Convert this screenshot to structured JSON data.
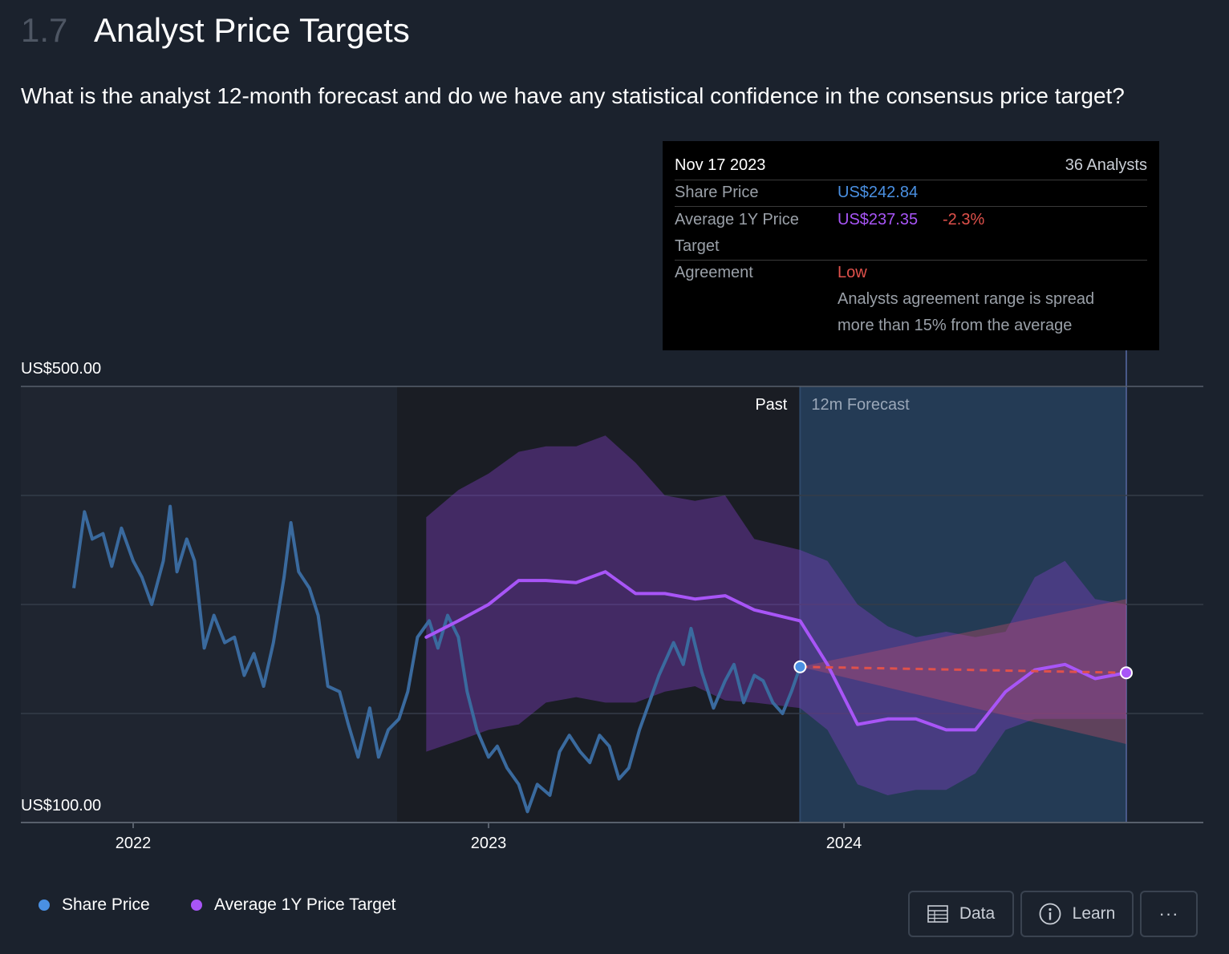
{
  "header": {
    "number": "1.7",
    "title": "Analyst Price Targets"
  },
  "subtitle": "What is the analyst 12-month forecast and do we have any statistical confidence in the consensus price target?",
  "tooltip": {
    "date": "Nov 17 2023",
    "analysts": "36 Analysts",
    "share_price_label": "Share Price",
    "share_price_value": "US$242.84",
    "target_label_line1": "Average 1Y Price",
    "target_label_line2": "Target",
    "target_value": "US$237.35",
    "target_change": "-2.3%",
    "agreement_label": "Agreement",
    "agreement_value": "Low",
    "agreement_desc_line1": "Analysts agreement range is spread",
    "agreement_desc_line2": "more than 15% from the average"
  },
  "legend": [
    {
      "label": "Share Price",
      "color": "#4a90e2"
    },
    {
      "label": "Average 1Y Price Target",
      "color": "#a855f7"
    }
  ],
  "buttons": {
    "data": "Data",
    "learn": "Learn",
    "more": "···"
  },
  "colors": {
    "share_price": "#3a6a9e",
    "target": "#a855f7",
    "forecast_bg": "#243b55",
    "negative": "#e0514b"
  },
  "chart_data": {
    "type": "line",
    "y_axis": {
      "labels": [
        "US$500.00",
        "US$100.00"
      ],
      "ylim": [
        100,
        500
      ],
      "gridlines": [
        500,
        400,
        300,
        200,
        100
      ]
    },
    "x_axis": {
      "labels": [
        "2022",
        "2023",
        "2024"
      ]
    },
    "region_labels": {
      "past": "Past",
      "forecast": "12m Forecast"
    },
    "series": [
      {
        "name": "Share Price",
        "points": [
          [
            "2021-11-01",
            315
          ],
          [
            "2021-11-12",
            385
          ],
          [
            "2021-11-20",
            360
          ],
          [
            "2021-12-01",
            365
          ],
          [
            "2021-12-10",
            335
          ],
          [
            "2021-12-20",
            370
          ],
          [
            "2022-01-01",
            340
          ],
          [
            "2022-01-10",
            325
          ],
          [
            "2022-01-20",
            300
          ],
          [
            "2022-02-01",
            340
          ],
          [
            "2022-02-08",
            390
          ],
          [
            "2022-02-15",
            330
          ],
          [
            "2022-02-25",
            360
          ],
          [
            "2022-03-05",
            340
          ],
          [
            "2022-03-15",
            260
          ],
          [
            "2022-03-25",
            290
          ],
          [
            "2022-04-05",
            265
          ],
          [
            "2022-04-15",
            270
          ],
          [
            "2022-04-25",
            235
          ],
          [
            "2022-05-05",
            255
          ],
          [
            "2022-05-15",
            225
          ],
          [
            "2022-05-25",
            265
          ],
          [
            "2022-06-05",
            325
          ],
          [
            "2022-06-12",
            375
          ],
          [
            "2022-06-20",
            330
          ],
          [
            "2022-07-01",
            315
          ],
          [
            "2022-07-10",
            290
          ],
          [
            "2022-07-20",
            225
          ],
          [
            "2022-08-01",
            220
          ],
          [
            "2022-08-10",
            190
          ],
          [
            "2022-08-20",
            160
          ],
          [
            "2022-09-01",
            205
          ],
          [
            "2022-09-10",
            160
          ],
          [
            "2022-09-20",
            185
          ],
          [
            "2022-10-01",
            195
          ],
          [
            "2022-10-10",
            220
          ],
          [
            "2022-10-20",
            270
          ],
          [
            "2022-11-01",
            285
          ],
          [
            "2022-11-10",
            260
          ],
          [
            "2022-11-20",
            290
          ],
          [
            "2022-12-01",
            270
          ],
          [
            "2022-12-10",
            220
          ],
          [
            "2022-12-20",
            185
          ],
          [
            "2023-01-01",
            160
          ],
          [
            "2023-01-10",
            170
          ],
          [
            "2023-01-20",
            150
          ],
          [
            "2023-02-01",
            135
          ],
          [
            "2023-02-10",
            110
          ],
          [
            "2023-02-20",
            135
          ],
          [
            "2023-03-05",
            125
          ],
          [
            "2023-03-15",
            165
          ],
          [
            "2023-03-25",
            180
          ],
          [
            "2023-04-05",
            165
          ],
          [
            "2023-04-15",
            155
          ],
          [
            "2023-04-25",
            180
          ],
          [
            "2023-05-05",
            170
          ],
          [
            "2023-05-15",
            140
          ],
          [
            "2023-05-25",
            150
          ],
          [
            "2023-06-05",
            185
          ],
          [
            "2023-06-15",
            210
          ],
          [
            "2023-06-25",
            235
          ],
          [
            "2023-07-10",
            265
          ],
          [
            "2023-07-20",
            245
          ],
          [
            "2023-07-28",
            278
          ],
          [
            "2023-08-08",
            238
          ],
          [
            "2023-08-20",
            205
          ],
          [
            "2023-09-01",
            230
          ],
          [
            "2023-09-10",
            245
          ],
          [
            "2023-09-20",
            210
          ],
          [
            "2023-10-01",
            235
          ],
          [
            "2023-10-10",
            230
          ],
          [
            "2023-10-20",
            210
          ],
          [
            "2023-10-30",
            200
          ],
          [
            "2023-11-08",
            220
          ],
          [
            "2023-11-17",
            242.84
          ]
        ]
      },
      {
        "name": "Average 1Y Price Target",
        "points": [
          [
            "2022-10-29",
            270
          ],
          [
            "2022-12-01",
            285
          ],
          [
            "2023-01-01",
            300
          ],
          [
            "2023-02-01",
            322
          ],
          [
            "2023-03-01",
            322
          ],
          [
            "2023-04-01",
            320
          ],
          [
            "2023-05-01",
            330
          ],
          [
            "2023-06-01",
            310
          ],
          [
            "2023-07-01",
            310
          ],
          [
            "2023-08-01",
            305
          ],
          [
            "2023-09-01",
            308
          ],
          [
            "2023-10-01",
            295
          ],
          [
            "2023-11-17",
            285
          ],
          [
            "2023-12-15",
            245
          ],
          [
            "2024-01-15",
            190
          ],
          [
            "2024-02-15",
            195
          ],
          [
            "2024-03-15",
            195
          ],
          [
            "2024-04-15",
            185
          ],
          [
            "2024-05-15",
            185
          ],
          [
            "2024-06-15",
            220
          ],
          [
            "2024-07-15",
            240
          ],
          [
            "2024-08-15",
            245
          ],
          [
            "2024-09-15",
            232
          ],
          [
            "2024-10-17",
            237.35
          ]
        ]
      }
    ],
    "target_range": {
      "dates": [
        "2022-10-29",
        "2022-12-01",
        "2023-01-01",
        "2023-02-01",
        "2023-03-01",
        "2023-04-01",
        "2023-05-01",
        "2023-06-01",
        "2023-07-01",
        "2023-08-01",
        "2023-09-01",
        "2023-10-01",
        "2023-11-17",
        "2023-12-15",
        "2024-01-15",
        "2024-02-15",
        "2024-03-15",
        "2024-04-15",
        "2024-05-15",
        "2024-06-15",
        "2024-07-15",
        "2024-08-15",
        "2024-09-15",
        "2024-10-17"
      ],
      "high": [
        380,
        405,
        420,
        440,
        445,
        445,
        455,
        430,
        400,
        395,
        400,
        360,
        350,
        340,
        300,
        280,
        270,
        275,
        270,
        275,
        325,
        340,
        305,
        300
      ],
      "low": [
        165,
        175,
        185,
        190,
        210,
        215,
        210,
        210,
        220,
        225,
        212,
        210,
        205,
        185,
        135,
        125,
        130,
        130,
        145,
        185,
        195,
        195,
        195,
        195
      ]
    },
    "forecast_cone": {
      "start": [
        "2023-11-17",
        242.84
      ],
      "end_high": [
        "2024-10-17",
        305
      ],
      "end_low": [
        "2024-10-17",
        172
      ],
      "end_target": [
        "2024-10-17",
        237.35
      ]
    }
  }
}
